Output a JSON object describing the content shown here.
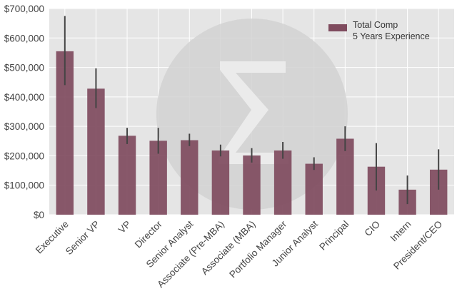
{
  "chart_data": {
    "type": "bar",
    "title": "",
    "xlabel": "",
    "ylabel": "",
    "ylim": [
      0,
      700000
    ],
    "yticks": [
      0,
      100000,
      200000,
      300000,
      400000,
      500000,
      600000,
      700000
    ],
    "ytick_labels": [
      "$0",
      "$100,000",
      "$200,000",
      "$300,000",
      "$400,000",
      "$500,000",
      "$600,000",
      "$700,000"
    ],
    "grid": true,
    "legend_position": "top-right",
    "categories": [
      "Executive",
      "Senior VP",
      "VP",
      "Director",
      "Senior Analyst",
      "Associate (Pre-MBA)",
      "Associate (MBA)",
      "Portfolio Manager",
      "Junior Analyst",
      "Principal",
      "CIO",
      "Intern",
      "President/CEO"
    ],
    "series": [
      {
        "name": "Total Comp\n5 Years Experience",
        "legend_lines": [
          "Total Comp",
          "5 Years Experience"
        ],
        "color": "#7f4b5e",
        "values": [
          555000,
          428000,
          268000,
          251000,
          253000,
          218000,
          201000,
          218000,
          173000,
          258000,
          163000,
          85000,
          153000
        ],
        "error_low": [
          440000,
          362000,
          240000,
          207000,
          233000,
          198000,
          177000,
          190000,
          152000,
          216000,
          82000,
          36000,
          85000
        ],
        "error_high": [
          675000,
          497000,
          295000,
          295000,
          275000,
          238000,
          226000,
          247000,
          195000,
          300000,
          243000,
          133000,
          222000
        ]
      }
    ],
    "colors": {
      "background": "#e5e5e5",
      "grid": "#ffffff",
      "bar": "#7f4b5e",
      "errorbar": "#444444",
      "watermark": "#d2d2d2"
    }
  }
}
